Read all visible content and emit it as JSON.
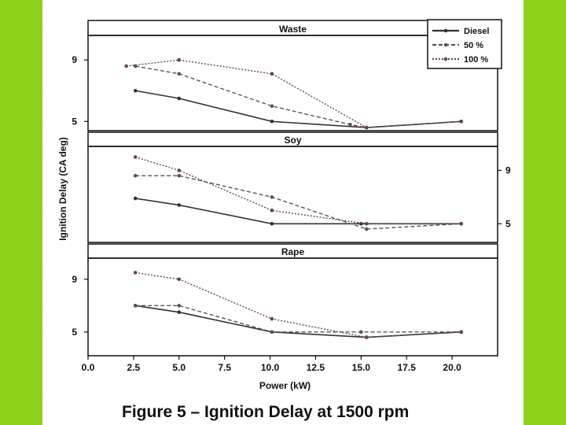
{
  "caption": "Figure 5 – Ignition Delay at 1500 rpm",
  "chart_data": {
    "type": "line",
    "title": "Figure 5 – Ignition Delay at 1500 rpm",
    "xlabel": "Power (kW)",
    "ylabel": "Ignition Delay (CA deg)",
    "xlim": [
      0,
      22.5
    ],
    "xticks": [
      "0.0",
      "2.5",
      "5.0",
      "7.5",
      "10.0",
      "12.5",
      "15.0",
      "17.5",
      "20.0"
    ],
    "legend": {
      "position": "top-right",
      "entries": [
        "Diesel",
        "50 %",
        "100 %"
      ]
    },
    "panels": [
      {
        "name": "Waste",
        "ylim": [
          4.4,
          10.6
        ],
        "yticks": [
          "9",
          "5"
        ],
        "yaxis_side": "left",
        "series": [
          {
            "name": "Diesel",
            "x": [
              2.6,
              5.0,
              10.1,
              15.3,
              20.5
            ],
            "y": [
              7.0,
              6.5,
              5.0,
              4.6,
              5.0
            ]
          },
          {
            "name": "50 %",
            "x": [
              2.6,
              5.0,
              10.1,
              14.4,
              15.3,
              20.5
            ],
            "y": [
              8.6,
              8.1,
              6.0,
              4.8,
              4.6,
              5.0
            ]
          },
          {
            "name": "100 %",
            "x": [
              2.1,
              5.0,
              10.1,
              15.3,
              20.5
            ],
            "y": [
              8.6,
              9.0,
              8.1,
              4.6,
              5.0
            ]
          }
        ]
      },
      {
        "name": "Soy",
        "ylim": [
          3.6,
          10.8
        ],
        "yticks": [
          "9",
          "5"
        ],
        "yaxis_side": "right",
        "series": [
          {
            "name": "Diesel",
            "x": [
              2.6,
              5.0,
              10.1,
              15.0,
              20.5
            ],
            "y": [
              6.9,
              6.4,
              5.0,
              5.0,
              5.0
            ]
          },
          {
            "name": "50 %",
            "x": [
              2.6,
              5.0,
              10.1,
              15.3,
              20.5
            ],
            "y": [
              8.6,
              8.6,
              7.0,
              4.6,
              5.0
            ]
          },
          {
            "name": "100 %",
            "x": [
              2.6,
              5.0,
              10.1,
              15.3,
              20.5
            ],
            "y": [
              10.0,
              9.0,
              6.0,
              5.0,
              5.0
            ]
          }
        ]
      },
      {
        "name": "Rape",
        "ylim": [
          3.2,
          10.6
        ],
        "yticks": [
          "9",
          "5"
        ],
        "yaxis_side": "left",
        "series": [
          {
            "name": "Diesel",
            "x": [
              2.6,
              5.0,
              10.1,
              15.3,
              20.5
            ],
            "y": [
              7.0,
              6.5,
              5.0,
              4.6,
              5.0
            ]
          },
          {
            "name": "50 %",
            "x": [
              2.6,
              5.0,
              10.1,
              15.0,
              20.5
            ],
            "y": [
              7.0,
              7.0,
              5.0,
              5.0,
              5.0
            ]
          },
          {
            "name": "100 %",
            "x": [
              2.6,
              5.0,
              10.1,
              15.3,
              20.5
            ],
            "y": [
              9.5,
              9.0,
              6.0,
              4.6,
              5.0
            ]
          }
        ]
      }
    ]
  }
}
